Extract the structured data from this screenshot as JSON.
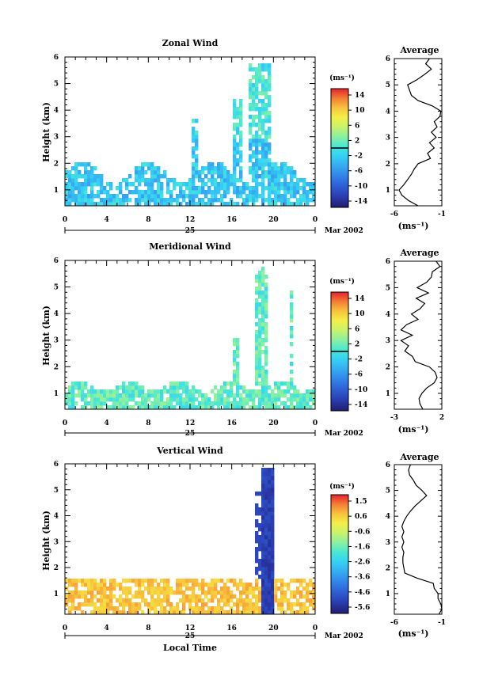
{
  "chart_data": [
    {
      "type": "heatmap",
      "title": "Zonal Wind",
      "ylabel": "Height (km)",
      "xticks": [
        "0",
        "4",
        "8",
        "12",
        "16",
        "20",
        "0"
      ],
      "yticks": [
        "1",
        "2",
        "3",
        "4",
        "5",
        "6"
      ],
      "ylim": [
        0.4,
        6.0
      ],
      "date_label": "25",
      "month_label": "Mar 2002",
      "xlabel": "",
      "colorbar": {
        "unit": "(ms⁻¹)",
        "ticks": [
          "14",
          "10",
          "6",
          "2",
          "-2",
          "-6",
          "-10",
          "-14"
        ],
        "range": [
          -16,
          16
        ]
      },
      "average_profile": {
        "title": "Average",
        "xlabel": "(ms⁻¹)",
        "xticks": [
          "-6",
          "-1"
        ],
        "xlim": [
          -6,
          -1
        ],
        "heights": [
          0.4,
          0.6,
          0.8,
          1.0,
          1.2,
          1.4,
          1.6,
          1.8,
          2.0,
          2.2,
          2.4,
          2.6,
          2.8,
          3.0,
          3.2,
          3.4,
          3.6,
          3.8,
          4.0,
          4.2,
          4.4,
          4.6,
          4.8,
          5.0,
          5.2,
          5.4,
          5.6,
          5.8,
          6.0
        ],
        "values": [
          -3.5,
          -4.5,
          -5.2,
          -5.5,
          -5.0,
          -4.6,
          -4.2,
          -3.9,
          -3.5,
          -2.2,
          -2.5,
          -1.8,
          -2.3,
          -1.6,
          -2.1,
          -1.5,
          -1.8,
          -1.2,
          -1.1,
          -2.0,
          -3.5,
          -4.2,
          -4.4,
          -4.6,
          -3.6,
          -2.8,
          -2.1,
          -2.7,
          -2.3
        ]
      }
    },
    {
      "type": "heatmap",
      "title": "Meridional Wind",
      "ylabel": "Height (km)",
      "xticks": [
        "0",
        "4",
        "8",
        "12",
        "16",
        "20",
        "0"
      ],
      "yticks": [
        "1",
        "2",
        "3",
        "4",
        "5",
        "6"
      ],
      "ylim": [
        0.4,
        6.0
      ],
      "date_label": "25",
      "month_label": "Mar 2002",
      "xlabel": "",
      "colorbar": {
        "unit": "(ms⁻¹)",
        "ticks": [
          "14",
          "10",
          "6",
          "2",
          "-2",
          "-6",
          "-10",
          "-14"
        ],
        "range": [
          -16,
          16
        ]
      },
      "average_profile": {
        "title": "Average",
        "xlabel": "(ms⁻¹)",
        "xticks": [
          "-3",
          "2"
        ],
        "xlim": [
          -3,
          2
        ],
        "heights": [
          0.4,
          0.6,
          0.8,
          1.0,
          1.2,
          1.4,
          1.6,
          1.8,
          2.0,
          2.2,
          2.4,
          2.6,
          2.8,
          3.0,
          3.2,
          3.4,
          3.6,
          3.8,
          4.0,
          4.2,
          4.4,
          4.6,
          4.8,
          5.0,
          5.2,
          5.4,
          5.6,
          5.8,
          6.0
        ],
        "values": [
          0.0,
          -0.3,
          -0.4,
          -0.1,
          0.4,
          1.2,
          1.5,
          1.3,
          0.7,
          -0.8,
          -1.1,
          -1.9,
          -1.5,
          -2.3,
          -1.1,
          -2.3,
          -1.7,
          -0.5,
          -1.2,
          -0.3,
          0.2,
          -0.7,
          0.6,
          -0.6,
          0.4,
          0.9,
          1.0,
          1.8,
          1.4
        ]
      }
    },
    {
      "type": "heatmap",
      "title": "Vertical Wind",
      "ylabel": "Height (km)",
      "xticks": [
        "0",
        "4",
        "8",
        "12",
        "16",
        "20",
        "0"
      ],
      "yticks": [
        "1",
        "2",
        "3",
        "4",
        "5",
        "6"
      ],
      "ylim": [
        0.2,
        6.0
      ],
      "date_label": "25",
      "month_label": "Mar 2002",
      "xlabel": "Local Time",
      "colorbar": {
        "unit": "(ms⁻¹)",
        "ticks": [
          "1.5",
          "0.6",
          "-0.6",
          "-1.6",
          "-2.6",
          "-3.6",
          "-4.6",
          "-5.6"
        ],
        "range": [
          -6.1,
          2.0
        ]
      },
      "average_profile": {
        "title": "Average",
        "xlabel": "(ms⁻¹)",
        "xticks": [
          "-6",
          "-1"
        ],
        "xlim": [
          -6,
          -1
        ],
        "heights": [
          0.2,
          0.4,
          0.6,
          0.8,
          1.0,
          1.2,
          1.4,
          1.6,
          1.8,
          2.0,
          2.2,
          2.4,
          2.6,
          2.8,
          3.0,
          3.2,
          3.4,
          3.6,
          3.8,
          4.0,
          4.2,
          4.4,
          4.6,
          4.8,
          5.0,
          5.2,
          5.4,
          5.6,
          5.8,
          6.0
        ],
        "values": [
          -1.3,
          -1.0,
          -1.1,
          -1.4,
          -1.4,
          -1.8,
          -1.9,
          -3.6,
          -4.9,
          -5.0,
          -5.1,
          -5.1,
          -5.0,
          -5.2,
          -5.0,
          -5.2,
          -5.0,
          -5.2,
          -5.0,
          -4.7,
          -4.3,
          -3.8,
          -3.2,
          -2.6,
          -3.1,
          -3.7,
          -4.0,
          -4.4,
          -4.5,
          -4.3
        ]
      }
    }
  ]
}
